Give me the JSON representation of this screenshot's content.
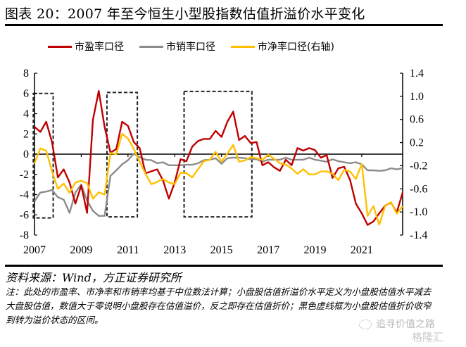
{
  "title": "图表 20：2007 年至今恒生小型股指数估值折溢价水平变化",
  "legend": [
    {
      "label": "市盈率口径",
      "color": "#C00000"
    },
    {
      "label": "市销率口径",
      "color": "#8C8C8C"
    },
    {
      "label": "市净率口径(右轴)",
      "color": "#FFC000"
    }
  ],
  "source": "资料来源：Wind，方正证券研究所",
  "note": "注：此处的市盈率、市净率和市销率均基于中位数法计算；小盘股估值折溢价水平定义为小盘股估值水平减去大盘股估值，数值大于零说明小盘股存在估值溢价，反之即存在估值折价；黑色虚线框为小盘股估值折价收窄到转为溢价状态的区间。",
  "watermark": {
    "line1": "追寻价值之路",
    "line2": "格隆汇"
  },
  "chart_data": {
    "type": "line",
    "title": "2007 年至今恒生小型股指数估值折溢价水平变化",
    "x_start": 2007.0,
    "x_step": 0.25,
    "x_ticks": [
      "2007",
      "2009",
      "2011",
      "2013",
      "2015",
      "2017",
      "2019",
      "2021"
    ],
    "x_tick_values": [
      2007,
      2009,
      2011,
      2013,
      2015,
      2017,
      2019,
      2021
    ],
    "xlim": [
      2007.0,
      2022.75
    ],
    "y_left": {
      "ticks": [
        "8",
        "6",
        "4",
        "2",
        "0",
        "-2",
        "-4",
        "-6",
        "-8"
      ],
      "tick_values": [
        8,
        6,
        4,
        2,
        0,
        -2,
        -4,
        -6,
        -8
      ],
      "ylim": [
        -8,
        8
      ]
    },
    "y_right": {
      "ticks": [
        "1.4",
        "1.0",
        "0.6",
        "0.2",
        "-0.2",
        "-0.6",
        "-1.0",
        "-1.4"
      ],
      "tick_values": [
        1.4,
        1.0,
        0.6,
        0.2,
        -0.2,
        -0.6,
        -1.0,
        -1.4
      ],
      "ylim": [
        -1.4,
        1.4
      ]
    },
    "series": [
      {
        "name": "市盈率口径",
        "axis": "left",
        "color": "#C00000",
        "values": [
          2.7,
          2.2,
          3.2,
          1.2,
          -2.3,
          -1.5,
          -2.8,
          -4.9,
          -3.1,
          -5.8,
          3.4,
          6.25,
          2.7,
          0.15,
          0.5,
          3.2,
          2.8,
          1.2,
          0.6,
          -1.9,
          -1.7,
          -1.5,
          -2.6,
          -4.4,
          -2.8,
          -0.5,
          -0.7,
          0.75,
          1.3,
          1.5,
          1.5,
          2.3,
          1.7,
          3.2,
          4.2,
          1.4,
          1.8,
          1.1,
          1.2,
          -1.1,
          -0.8,
          -1.3,
          -1.65,
          -0.55,
          -1.1,
          0.6,
          0.35,
          0.6,
          0.4,
          -0.35,
          -0.1,
          -2.35,
          -1.4,
          -1.25,
          -2.55,
          -4.9,
          -5.85,
          -7.0,
          -6.65,
          -5.85,
          -5.1,
          -4.8,
          -5.75,
          -3.8
        ]
      },
      {
        "name": "市销率口径",
        "axis": "left",
        "color": "#8C8C8C",
        "values": [
          -4.65,
          -3.8,
          -3.7,
          -3.55,
          -4.25,
          -4.5,
          -5.8,
          -3.8,
          -3.0,
          -4.6,
          -5.6,
          -6.1,
          -6.1,
          -2.15,
          -1.6,
          -1.0,
          -0.6,
          0.05,
          -0.3,
          -0.55,
          -0.6,
          -0.9,
          -0.8,
          -1.1,
          -1.1,
          -1.1,
          -1.05,
          -1.05,
          -0.9,
          -0.6,
          -0.55,
          -0.4,
          -0.95,
          -0.4,
          -0.35,
          -0.35,
          -0.4,
          -0.5,
          -0.5,
          -0.75,
          -0.55,
          -0.55,
          -0.55,
          -0.35,
          -0.55,
          -0.55,
          -0.55,
          -0.35,
          -0.55,
          -0.65,
          -0.75,
          -0.5,
          -0.7,
          -0.8,
          -0.9,
          -0.8,
          -1.0,
          -1.6,
          -1.6,
          -1.65,
          -1.6,
          -1.4,
          -1.5,
          -1.4
        ]
      },
      {
        "name": "市净率口径(右轴)",
        "axis": "right",
        "color": "#FFC000",
        "values": [
          -0.16,
          0.1,
          0.06,
          -0.3,
          -0.6,
          -0.51,
          -0.67,
          -0.49,
          -0.46,
          -0.5,
          -0.77,
          -0.66,
          -0.7,
          0.02,
          0.0,
          0.35,
          0.27,
          0.09,
          -0.13,
          -0.34,
          -0.52,
          -0.48,
          -0.43,
          -0.49,
          -0.52,
          -0.32,
          -0.33,
          -0.4,
          -0.26,
          -0.12,
          -0.1,
          0.04,
          -0.13,
          0.01,
          0.16,
          -0.13,
          -0.11,
          -0.05,
          -0.07,
          -0.1,
          -0.01,
          -0.08,
          -0.16,
          -0.18,
          -0.25,
          -0.34,
          -0.26,
          -0.35,
          -0.35,
          -0.3,
          -0.3,
          -0.34,
          -0.45,
          -0.27,
          -0.3,
          -0.43,
          -0.17,
          -1.07,
          -0.9,
          -1.22,
          -0.9,
          -0.83,
          -1.03,
          -0.9
        ]
      }
    ],
    "shaded_boxes": [
      {
        "x_from": 2006.95,
        "x_to": 2007.8,
        "y_from": -6.3,
        "y_to": 6.0,
        "style": "dashed"
      },
      {
        "x_from": 2010.1,
        "x_to": 2011.4,
        "y_from": -6.2,
        "y_to": 6.1,
        "style": "dashed"
      },
      {
        "x_from": 2013.4,
        "x_to": 2016.3,
        "y_from": -6.2,
        "y_to": 6.2,
        "style": "dashed"
      }
    ],
    "legend_position": "top"
  }
}
